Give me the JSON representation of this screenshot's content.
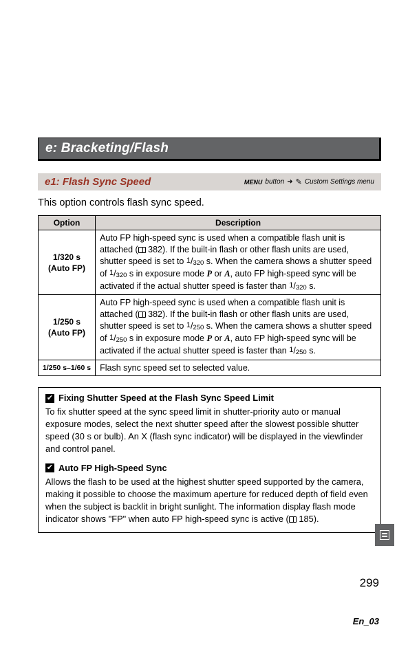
{
  "section": {
    "title": "e: Bracketing/Flash"
  },
  "subsection": {
    "title": "e1: Flash Sync Speed",
    "menu_label": "MENU",
    "button_word": "button",
    "arrow": "➜",
    "menu_path": "Custom Settings menu"
  },
  "intro": "This option controls flash sync speed.",
  "table": {
    "headers": {
      "option": "Option",
      "description": "Description"
    },
    "rows": [
      {
        "option_line1": "1/320 s",
        "option_line2": "(Auto FP)",
        "desc_pre": "Auto FP high-speed sync is used when a compatible flash unit is attached (",
        "desc_ref": "382",
        "desc_mid1": "). If the built-in flash or other flash units are used, shutter speed is set to ",
        "frac1_num": "1",
        "frac1_den": "320",
        "desc_mid2": " s. When the camera shows a shutter speed of ",
        "frac2_num": "1",
        "frac2_den": "320",
        "desc_mid3": " s in exposure mode ",
        "mode1": "P",
        "or": " or ",
        "mode2": "A",
        "desc_mid4": ", auto FP high-speed sync will be activated if the actual shutter speed is faster than ",
        "frac3_num": "1",
        "frac3_den": "320",
        "desc_end": " s."
      },
      {
        "option_line1": "1/250 s",
        "option_line2": "(Auto FP)",
        "desc_pre": "Auto FP high-speed sync is used when a compatible flash unit is attached (",
        "desc_ref": "382",
        "desc_mid1": ").  If the built-in flash or other flash units are used, shutter speed is set to ",
        "frac1_num": "1",
        "frac1_den": "250",
        "desc_mid2": " s.  When the camera shows a shutter speed of ",
        "frac2_num": "1",
        "frac2_den": "250",
        "desc_mid3": " s in exposure mode ",
        "mode1": "P",
        "or": " or ",
        "mode2": "A",
        "desc_mid4": ", auto FP high-speed sync will be activated if the actual shutter speed is faster than ",
        "frac3_num": "1",
        "frac3_den": "250",
        "desc_end": " s."
      },
      {
        "option_line1": "1/250 s–1/60 s",
        "option_line2": "",
        "desc_full": "Flash sync speed set to selected value."
      }
    ]
  },
  "notes": [
    {
      "title": "Fixing Shutter Speed at the Flash Sync Speed Limit",
      "body": "To fix shutter speed at the sync speed limit in shutter-priority auto or manual exposure modes, select the next shutter speed after the slowest possible shutter speed (30 s or bulb).  An X (flash sync indicator) will be displayed in the viewfinder and control panel."
    },
    {
      "title": "Auto FP High-Speed Sync",
      "body_pre": "Allows the flash to be used at the highest shutter speed supported by the camera, making it possible to choose the maximum aperture for reduced depth of field even when the subject is backlit in bright sunlight.  The information display flash mode indicator shows \"FP\" when auto FP high-speed sync is active (",
      "body_ref": "185",
      "body_end": ")."
    }
  ],
  "page_number": "299",
  "footer_label": "En_03"
}
